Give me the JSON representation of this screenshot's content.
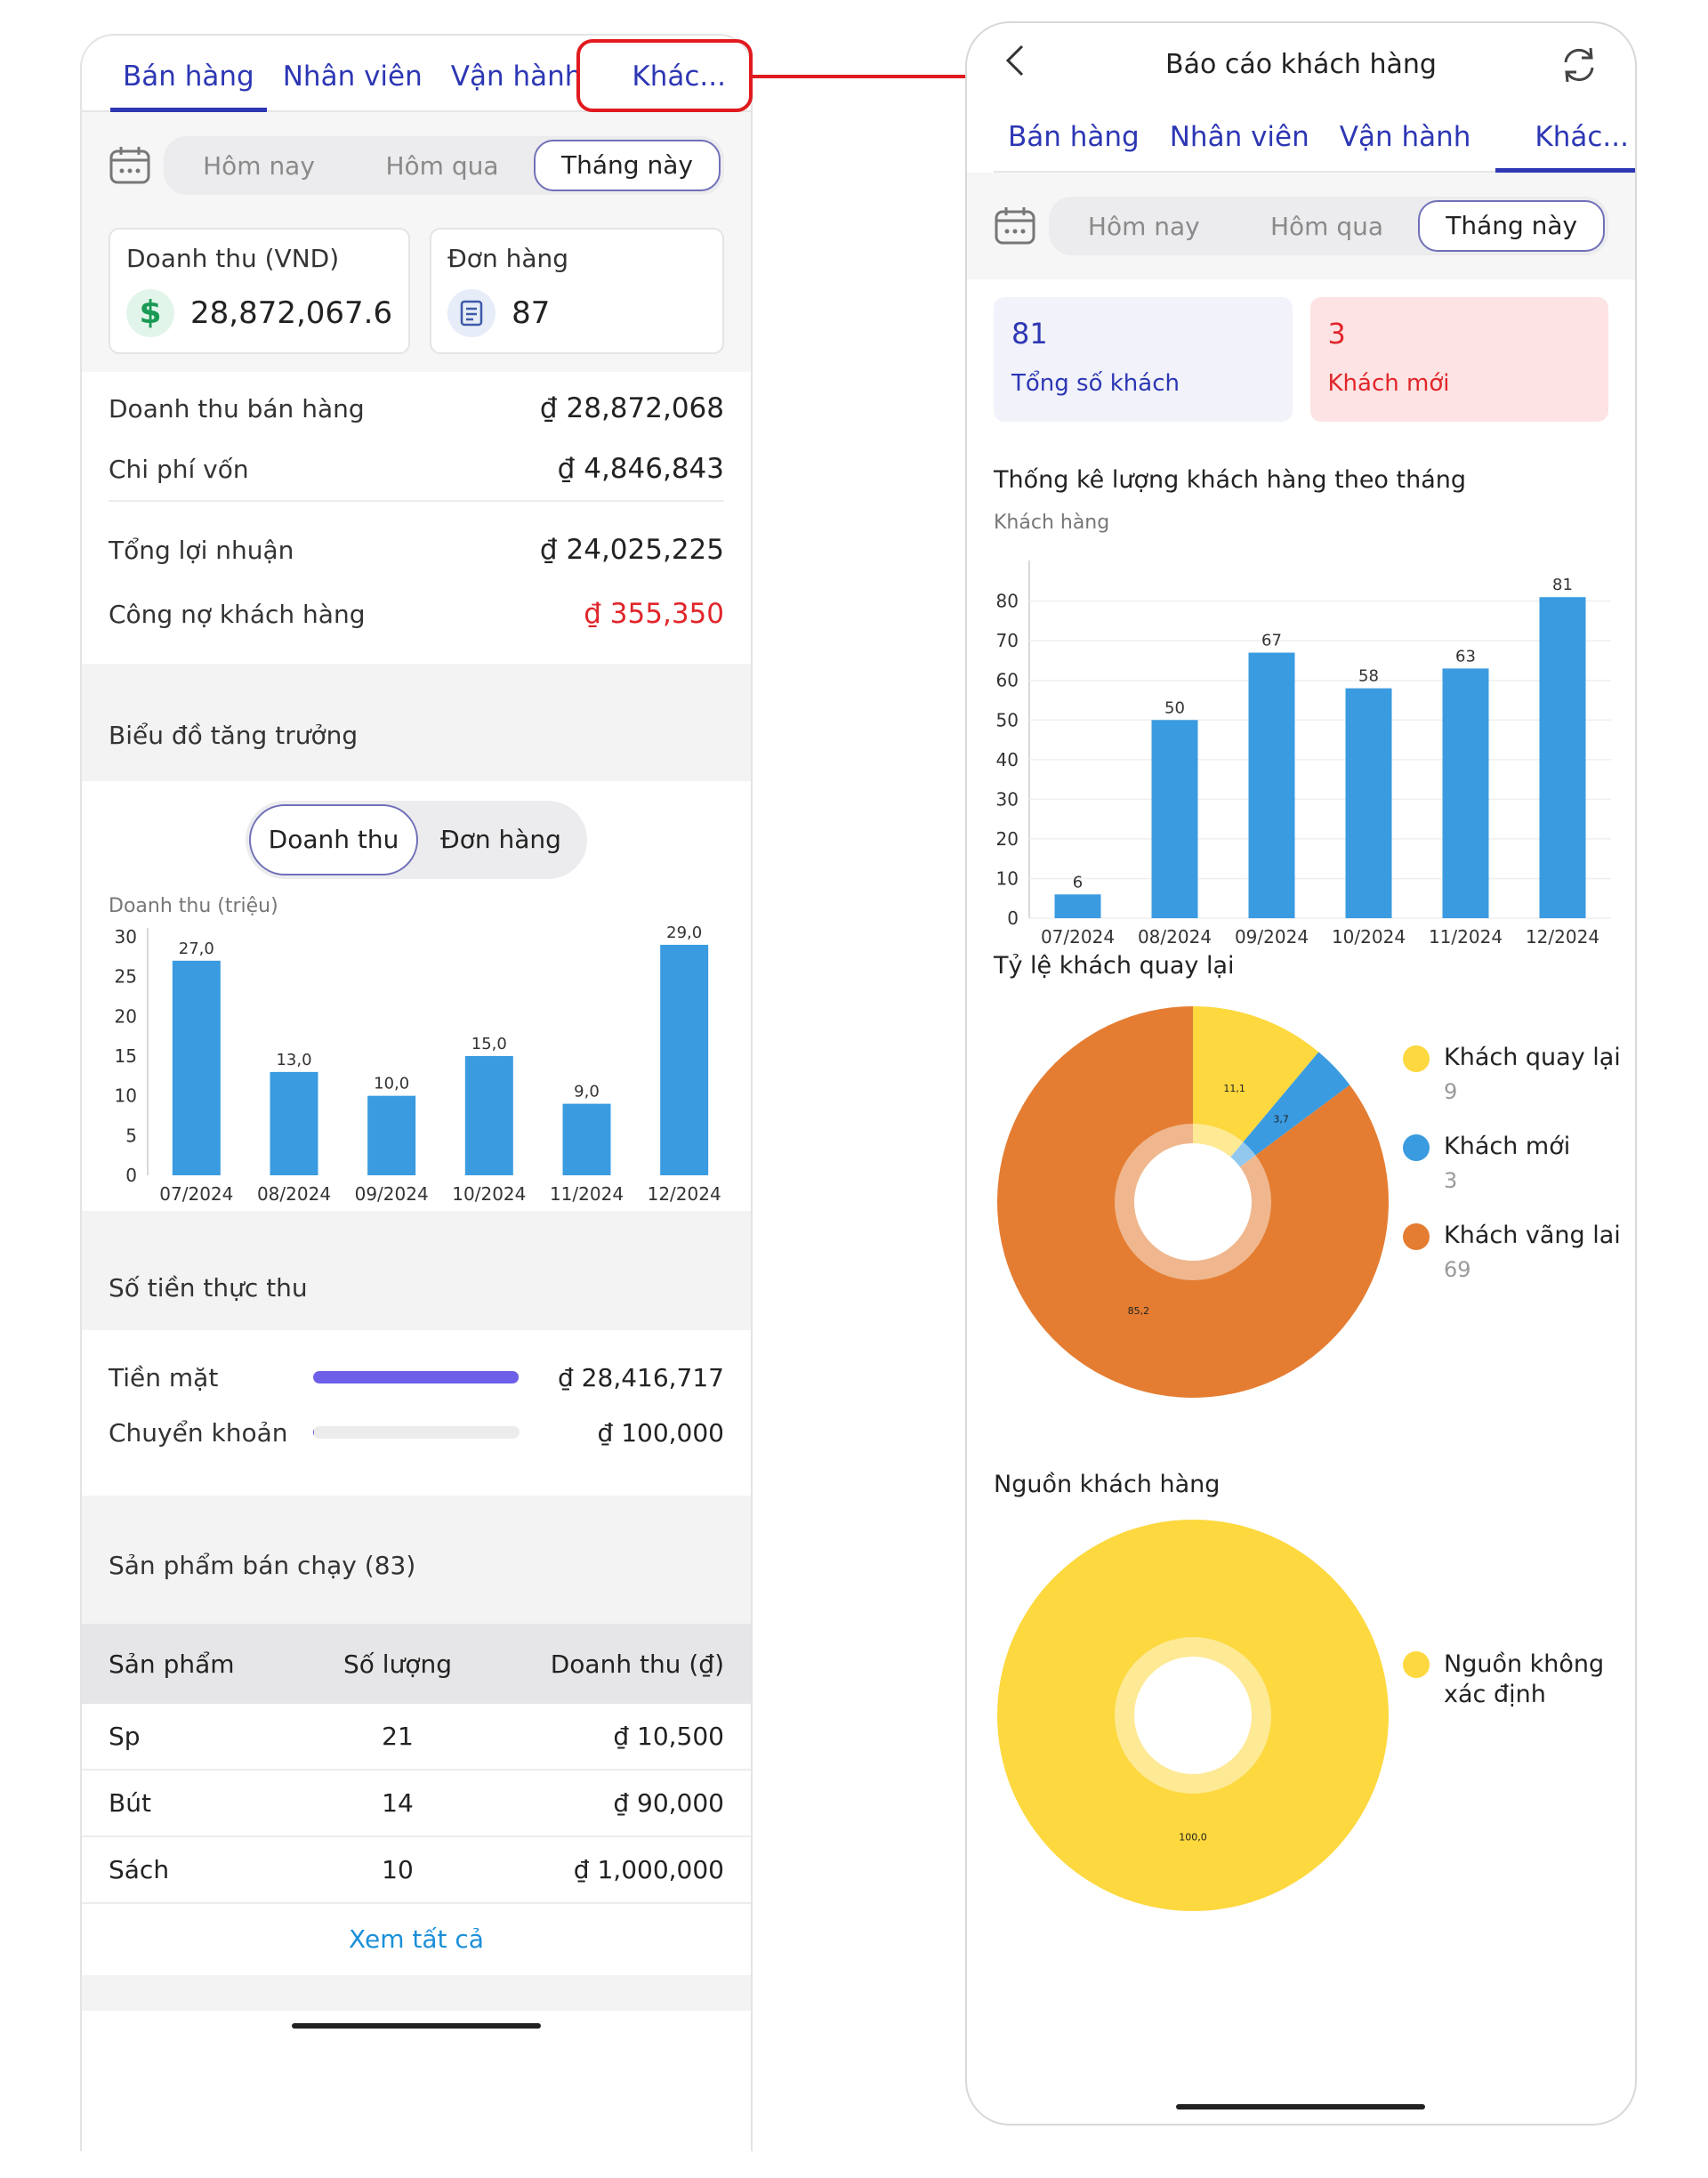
{
  "left": {
    "tabs": [
      "Bán hàng",
      "Nhân viên",
      "Vận hành",
      "Khác..."
    ],
    "date_options": [
      "Hôm nay",
      "Hôm qua",
      "Tháng này"
    ],
    "revenue_card": {
      "label": "Doanh thu (VND)",
      "value": "28,872,067.6",
      "icon": "dollar-icon"
    },
    "orders_card": {
      "label": "Đơn hàng",
      "value": "87",
      "icon": "document-icon"
    },
    "summary": [
      {
        "label": "Doanh thu bán hàng",
        "value": "₫ 28,872,068"
      },
      {
        "label": "Chi phí vốn",
        "value": "₫ 4,846,843"
      },
      {
        "label": "Tổng lợi nhuận",
        "value": "₫ 24,025,225"
      },
      {
        "label": "Công nợ khách hàng",
        "value": "₫ 355,350"
      }
    ],
    "debt_color": "#e0262b",
    "growth_title": "Biểu đồ tăng trưởng",
    "growth_toggle": [
      "Doanh thu",
      "Đơn hàng"
    ],
    "chart_unit": "Doanh thu (triệu)",
    "cash_title": "Số tiền thực thu",
    "cash_rows": [
      {
        "label": "Tiền mặt",
        "value": "₫ 28,416,717",
        "fraction": 0.996
      },
      {
        "label": "Chuyển khoản",
        "value": "₫ 100,000",
        "fraction": 0.004
      }
    ],
    "cash_bar_color": "#6e5fe8",
    "best_title": "Sản phẩm bán chạy (83)",
    "table_headers": [
      "Sản phẩm",
      "Số lượng",
      "Doanh thu (₫)"
    ],
    "table_rows": [
      [
        "Sp",
        "21",
        "₫ 10,500"
      ],
      [
        "Bút",
        "14",
        "₫ 90,000"
      ],
      [
        "Sách",
        "10",
        "₫ 1,000,000"
      ]
    ],
    "view_all": "Xem tất cả"
  },
  "right": {
    "back_icon": "chevron-left-icon",
    "title": "Báo cáo khách hàng",
    "refresh_icon": "refresh-icon",
    "tabs": [
      "Bán hàng",
      "Nhân viên",
      "Vận hành",
      "Khác..."
    ],
    "date_options": [
      "Hôm nay",
      "Hôm qua",
      "Tháng này"
    ],
    "total_card": {
      "value": "81",
      "label": "Tổng số khách"
    },
    "new_card": {
      "value": "3",
      "label": "Khách mới"
    },
    "monthly_title": "Thống kê lượng khách hàng theo tháng",
    "monthly_unit": "Khách hàng",
    "return_title": "Tỷ lệ khách quay lại",
    "return_legend": [
      {
        "label": "Khách quay lại",
        "count": "9",
        "color": "#fdd83f"
      },
      {
        "label": "Khách mới",
        "count": "3",
        "color": "#3a9be0"
      },
      {
        "label": "Khách vãng lai",
        "count": "69",
        "color": "#e47d32"
      }
    ],
    "source_title": "Nguồn khách hàng",
    "source_legend": [
      {
        "label": "Nguồn không xác định",
        "color": "#fdd83f"
      }
    ]
  },
  "chart_data": [
    {
      "type": "bar",
      "ylabel": "Doanh thu (triệu)",
      "categories": [
        "07/2024",
        "08/2024",
        "09/2024",
        "10/2024",
        "11/2024",
        "12/2024"
      ],
      "values": [
        27.0,
        13.0,
        10.0,
        15.0,
        9.0,
        29.0
      ],
      "value_labels": [
        "27,0",
        "13,0",
        "10,0",
        "15,0",
        "9,0",
        "29,0"
      ],
      "yticks": [
        0,
        5,
        10,
        15,
        20,
        25,
        30
      ],
      "ylim": [
        0,
        30
      ],
      "color": "#3a9be0"
    },
    {
      "type": "bar",
      "title": "Thống kê lượng khách hàng theo tháng",
      "ylabel": "Khách hàng",
      "categories": [
        "07/2024",
        "08/2024",
        "09/2024",
        "10/2024",
        "11/2024",
        "12/2024"
      ],
      "values": [
        6,
        50,
        67,
        58,
        63,
        81
      ],
      "yticks": [
        0,
        10,
        20,
        30,
        40,
        50,
        60,
        70,
        80
      ],
      "ylim": [
        0,
        88
      ],
      "color": "#3a9be0"
    },
    {
      "type": "pie",
      "title": "Tỷ lệ khách quay lại",
      "labels": [
        "Khách quay lại",
        "Khách mới",
        "Khách vãng lai"
      ],
      "values": [
        11.1,
        3.7,
        85.2
      ],
      "value_labels": [
        "11,1",
        "3,7",
        "85,2"
      ],
      "colors": [
        "#fdd83f",
        "#3a9be0",
        "#e47d32"
      ]
    },
    {
      "type": "pie",
      "title": "Nguồn khách hàng",
      "labels": [
        "Nguồn không xác định"
      ],
      "values": [
        100.0
      ],
      "value_labels": [
        "100,0"
      ],
      "colors": [
        "#fdd83f"
      ]
    }
  ]
}
